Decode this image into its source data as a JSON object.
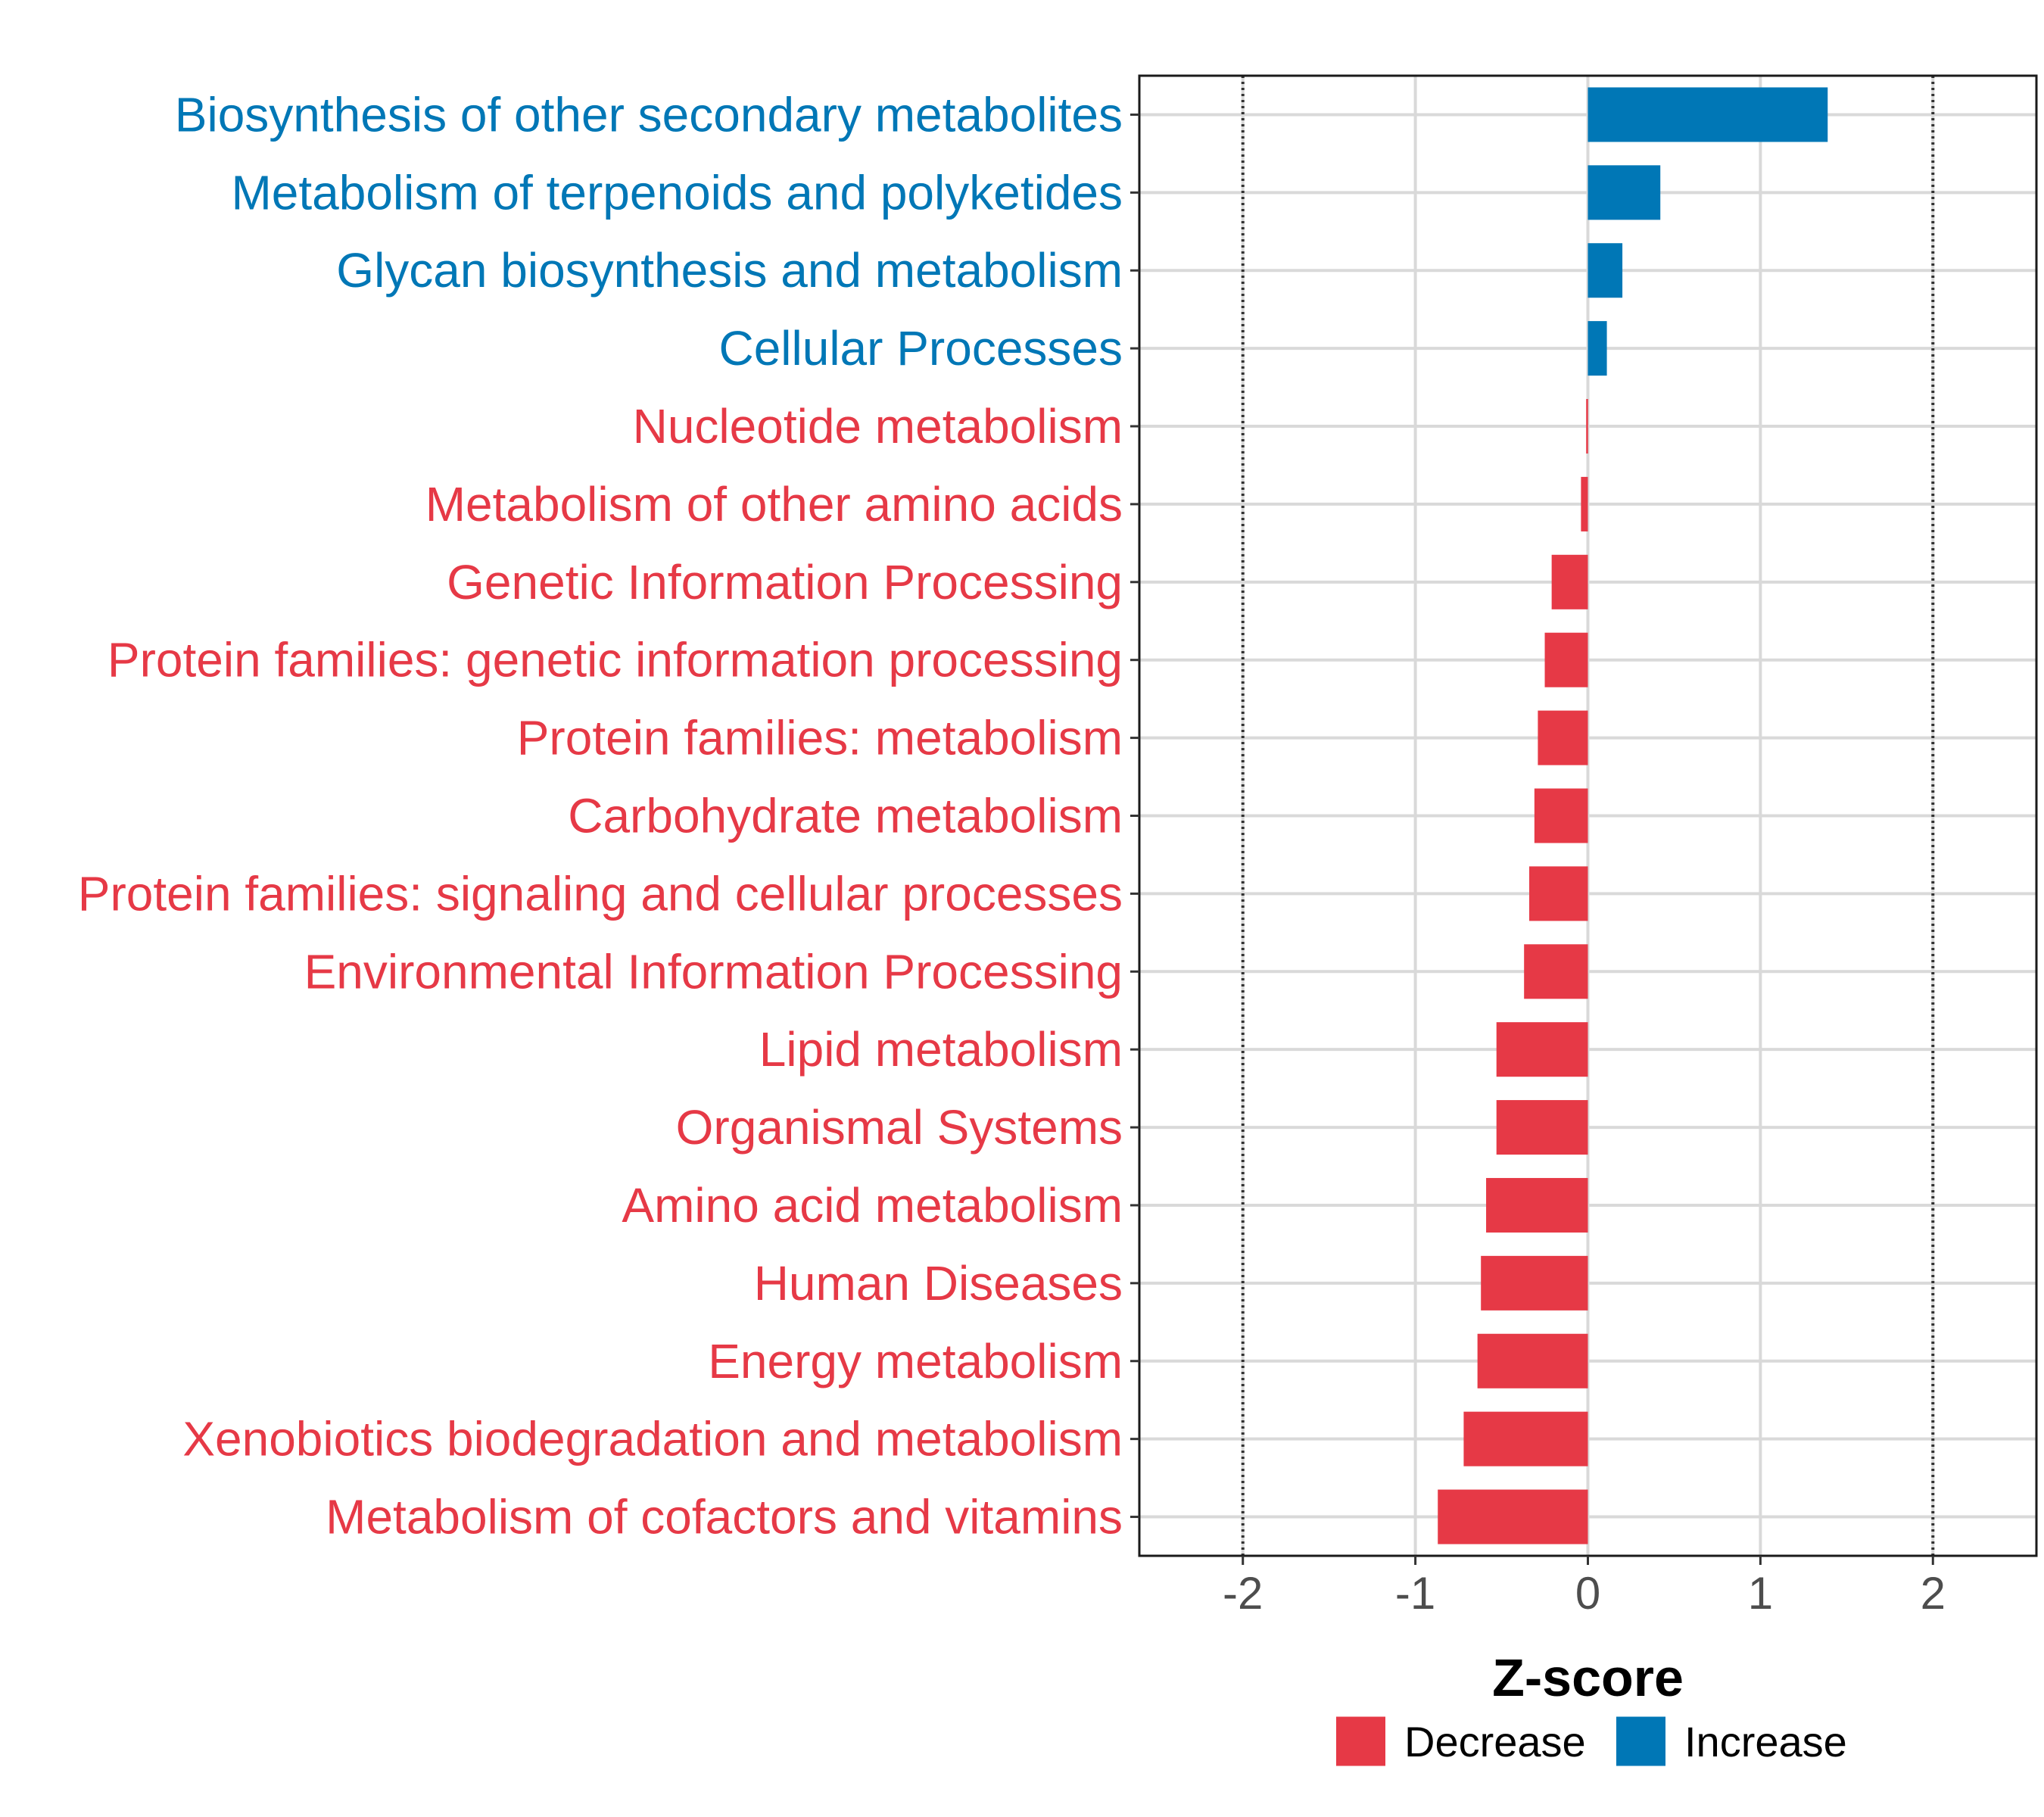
{
  "chart_data": {
    "type": "bar",
    "orientation": "horizontal",
    "title": "",
    "xlabel": "Z-score",
    "ylabel": "",
    "xlim": [
      -2.6,
      2.6
    ],
    "x_ticks": [
      -2,
      -1,
      0,
      1,
      2
    ],
    "x_tick_labels": [
      "-2",
      "-1",
      "0",
      "1",
      "2"
    ],
    "reference_lines": [
      -2,
      2
    ],
    "grid": true,
    "legend_position": "bottom",
    "colors": {
      "Decrease": "#e63946",
      "Increase": "#0077b6"
    },
    "legend": [
      {
        "name": "Decrease",
        "color": "#e63946"
      },
      {
        "name": "Increase",
        "color": "#0077b6"
      }
    ],
    "categories": [
      "Biosynthesis of other secondary metabolites",
      "Metabolism of terpenoids and polyketides",
      "Glycan biosynthesis and metabolism",
      "Cellular Processes",
      "Nucleotide metabolism",
      "Metabolism of other amino acids",
      "Genetic Information Processing",
      "Protein families: genetic information processing",
      "Protein families: metabolism",
      "Carbohydrate metabolism",
      "Protein families: signaling and cellular processes",
      "Environmental Information Processing",
      "Lipid metabolism",
      "Organismal Systems",
      "Amino acid metabolism",
      "Human Diseases",
      "Energy metabolism",
      "Xenobiotics biodegradation and metabolism",
      "Metabolism of cofactors and vitamins"
    ],
    "values": [
      1.39,
      0.42,
      0.2,
      0.11,
      -0.01,
      -0.04,
      -0.21,
      -0.25,
      -0.29,
      -0.31,
      -0.34,
      -0.37,
      -0.53,
      -0.53,
      -0.59,
      -0.62,
      -0.64,
      -0.72,
      -0.87
    ],
    "groups": [
      "Increase",
      "Increase",
      "Increase",
      "Increase",
      "Decrease",
      "Decrease",
      "Decrease",
      "Decrease",
      "Decrease",
      "Decrease",
      "Decrease",
      "Decrease",
      "Decrease",
      "Decrease",
      "Decrease",
      "Decrease",
      "Decrease",
      "Decrease",
      "Decrease"
    ]
  }
}
